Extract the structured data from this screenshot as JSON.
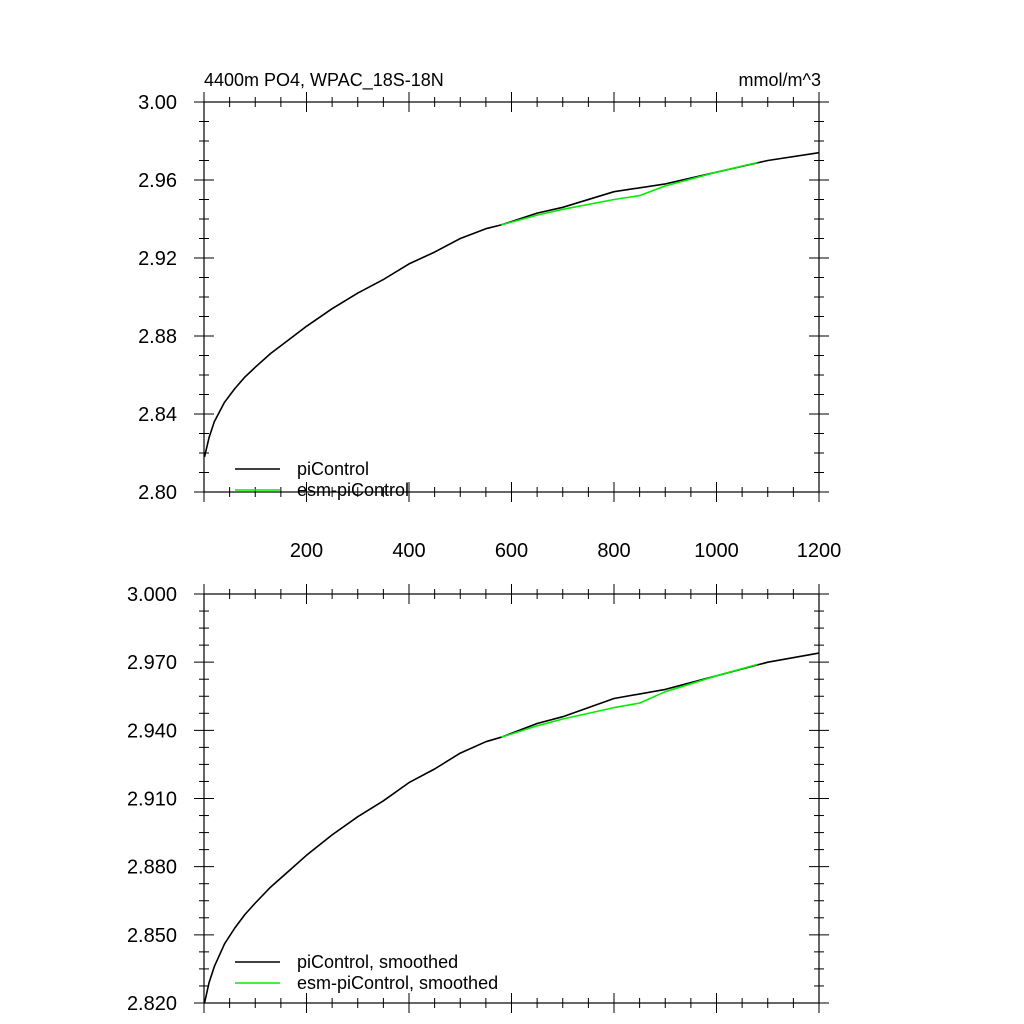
{
  "chart_data": [
    {
      "type": "line",
      "title": "4400m PO4, WPAC_18S-18N",
      "units": "mmol/m^3",
      "xlim": [
        0,
        1200
      ],
      "ylim": [
        2.8,
        3.0
      ],
      "x_ticks": [
        200,
        400,
        600,
        800,
        1000,
        1200
      ],
      "y_ticks": [
        "3.00",
        "2.96",
        "2.92",
        "2.88",
        "2.84",
        "2.80"
      ],
      "grid": false,
      "legend": "bottom-left",
      "series": [
        {
          "name": "piControl",
          "color": "#000000",
          "x": [
            1,
            10,
            20,
            40,
            60,
            80,
            100,
            130,
            160,
            200,
            250,
            300,
            350,
            400,
            450,
            500,
            550,
            580,
            650,
            700,
            800,
            900,
            1000,
            1100,
            1200
          ],
          "y": [
            2.818,
            2.828,
            2.836,
            2.846,
            2.853,
            2.859,
            2.864,
            2.871,
            2.877,
            2.885,
            2.894,
            2.902,
            2.909,
            2.917,
            2.923,
            2.93,
            2.935,
            2.937,
            2.943,
            2.946,
            2.954,
            2.958,
            2.964,
            2.97,
            2.974
          ]
        },
        {
          "name": "esm-piControl",
          "color": "#00ee00",
          "x": [
            580,
            650,
            700,
            800,
            850,
            900,
            1000,
            1080
          ],
          "y": [
            2.937,
            2.942,
            2.945,
            2.95,
            2.952,
            2.957,
            2.964,
            2.969
          ]
        }
      ]
    },
    {
      "type": "line",
      "xlim": [
        0,
        1200
      ],
      "ylim": [
        2.82,
        3.0
      ],
      "y_ticks": [
        "3.000",
        "2.970",
        "2.940",
        "2.910",
        "2.880",
        "2.850",
        "2.820"
      ],
      "grid": false,
      "legend": "bottom-left",
      "series": [
        {
          "name": "piControl, smoothed",
          "color": "#000000",
          "x": [
            1,
            10,
            20,
            40,
            60,
            80,
            100,
            130,
            160,
            200,
            250,
            300,
            350,
            400,
            450,
            500,
            550,
            580,
            650,
            700,
            800,
            900,
            1000,
            1100,
            1200
          ],
          "y": [
            2.82,
            2.829,
            2.836,
            2.846,
            2.853,
            2.859,
            2.864,
            2.871,
            2.877,
            2.885,
            2.894,
            2.902,
            2.909,
            2.917,
            2.923,
            2.93,
            2.935,
            2.937,
            2.943,
            2.946,
            2.954,
            2.958,
            2.964,
            2.97,
            2.974
          ]
        },
        {
          "name": "esm-piControl, smoothed",
          "color": "#00ee00",
          "x": [
            580,
            650,
            700,
            800,
            850,
            900,
            1000,
            1080
          ],
          "y": [
            2.937,
            2.942,
            2.945,
            2.95,
            2.952,
            2.957,
            2.964,
            2.969
          ]
        }
      ]
    }
  ]
}
